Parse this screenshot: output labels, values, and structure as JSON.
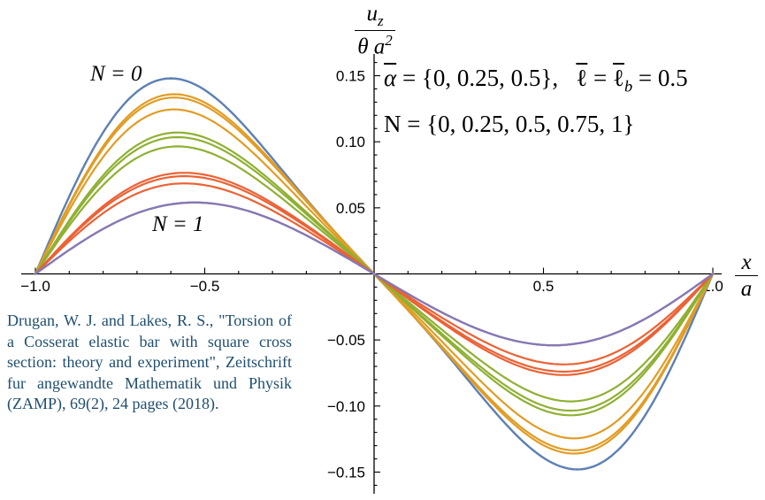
{
  "annotations": {
    "label_n0": "N = 0",
    "label_n1": "N = 1",
    "params": {
      "alpha": "α",
      "seg1": " = {0, 0.25, 0.5},   ",
      "ell1": "ℓ",
      "seg2": " = ",
      "ell2": "ℓ",
      "sub_b": "b",
      "seg3": " = 0.5"
    },
    "params_line2": "N = {0, 0.25, 0.5, 0.75, 1}"
  },
  "axis_labels": {
    "y_numerator_u": "u",
    "y_numerator_sub": "z",
    "y_denominator": "θ a",
    "y_denominator_exp": "2",
    "x_numerator": "x",
    "x_denominator": "a"
  },
  "citation": {
    "text": "Drugan, W. J. and Lakes, R. S., \"Torsion of a Cosserat elastic bar with square cross section: theory and experiment\", Zeitschrift fur angewandte Mathematik und Physik (ZAMP), 69(2), 24 pages (2018).",
    "color": "#1F4E6E"
  },
  "chart_data": {
    "type": "line",
    "title": "",
    "xlabel": "x/a",
    "ylabel": "u_z/(θ a^2)",
    "xlim": [
      -1.04,
      1.03
    ],
    "ylim": [
      -0.167,
      0.167
    ],
    "grid": false,
    "legend_position": "none (curve families labeled in-plot: N = 0 top, N = 1 bottom)",
    "x_ticks": [
      {
        "value": -1.0,
        "label": "−1.0"
      },
      {
        "value": -0.5,
        "label": "−0.5"
      },
      {
        "value": 0.5,
        "label": "0.5"
      },
      {
        "value": 1.0,
        "label": "1.0"
      }
    ],
    "y_ticks": [
      {
        "value": 0.15,
        "label": "0.15"
      },
      {
        "value": 0.1,
        "label": "0.10"
      },
      {
        "value": 0.05,
        "label": "0.05"
      },
      {
        "value": -0.05,
        "label": "−0.05"
      },
      {
        "value": -0.1,
        "label": "−0.10"
      },
      {
        "value": -0.15,
        "label": "−0.15"
      }
    ],
    "x_minor_tick_step": 0.1,
    "y_minor_tick_step": 0.01,
    "curve_model": "odd S-curves with zeros at x/a = −1, 0, 1; u(x) = −peak·(sin(πx) − r·sin(2πx))/s(p); r chosen so the positive peak (value = peak_uz) sits at x = peak_x and the mirror trough at −peak_x",
    "series": [
      {
        "name": "N = 0",
        "N": 0,
        "color": "#5E81B5",
        "alpha_values": [
          0,
          0.25,
          0.5
        ],
        "peak_uz": [
          0.148,
          0.148,
          0.148
        ],
        "peak_x": -0.6
      },
      {
        "name": "N = 0.25",
        "N": 0.25,
        "color": "#E19C24",
        "alpha_values": [
          0,
          0.25,
          0.5
        ],
        "peak_uz": [
          0.136,
          0.1335,
          0.1245
        ],
        "peak_x": -0.59
      },
      {
        "name": "N = 0.5",
        "N": 0.5,
        "color": "#8FB032",
        "alpha_values": [
          0,
          0.25,
          0.5
        ],
        "peak_uz": [
          0.107,
          0.1035,
          0.0965
        ],
        "peak_x": -0.58
      },
      {
        "name": "N = 0.75",
        "N": 0.75,
        "color": "#EB6235",
        "alpha_values": [
          0,
          0.25,
          0.5
        ],
        "peak_uz": [
          0.0765,
          0.074,
          0.0685
        ],
        "peak_x": -0.56
      },
      {
        "name": "N = 1",
        "N": 1,
        "color": "#8778B3",
        "alpha_values": [
          0,
          0.25,
          0.5
        ],
        "peak_uz": [
          0.054,
          0.054,
          0.054
        ],
        "peak_x": -0.53
      }
    ]
  }
}
